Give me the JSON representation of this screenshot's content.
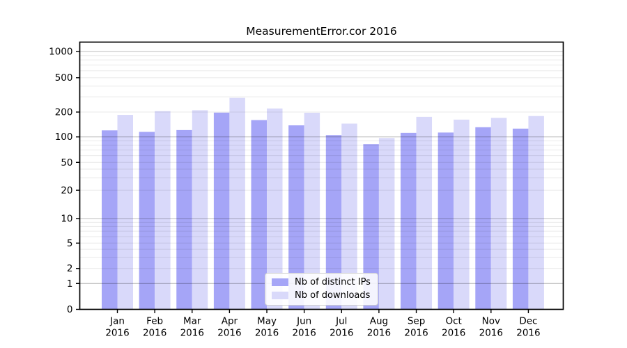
{
  "chart_data": {
    "type": "bar",
    "title": "MeasurementError.cor 2016",
    "x_categories": [
      "Jan",
      "Feb",
      "Mar",
      "Apr",
      "May",
      "Jun",
      "Jul",
      "Aug",
      "Sep",
      "Oct",
      "Nov",
      "Dec"
    ],
    "x_year": "2016",
    "series": [
      {
        "name": "Nb of distinct IPs",
        "color": "#a5a5f7",
        "values": [
          120,
          115,
          121,
          197,
          160,
          138,
          105,
          82,
          112,
          113,
          131,
          126
        ]
      },
      {
        "name": "Nb of downloads",
        "color": "#d9d9fa",
        "values": [
          185,
          205,
          210,
          292,
          220,
          196,
          145,
          97,
          175,
          162,
          170,
          179
        ]
      }
    ],
    "y_axis": {
      "scale": "symlog",
      "tick_labels": [
        "0",
        "1",
        "2",
        "5",
        "10",
        "20",
        "50",
        "100",
        "200",
        "500",
        "1000"
      ],
      "ylim_top": 1000
    },
    "legend": {
      "position": "lower-center"
    },
    "grid": true,
    "colors": {
      "background": "#ffffff",
      "spine": "#000000",
      "grid_major": "rgba(0,0,0,0.26)",
      "grid_minor": "rgba(0,0,0,0.085)"
    }
  }
}
